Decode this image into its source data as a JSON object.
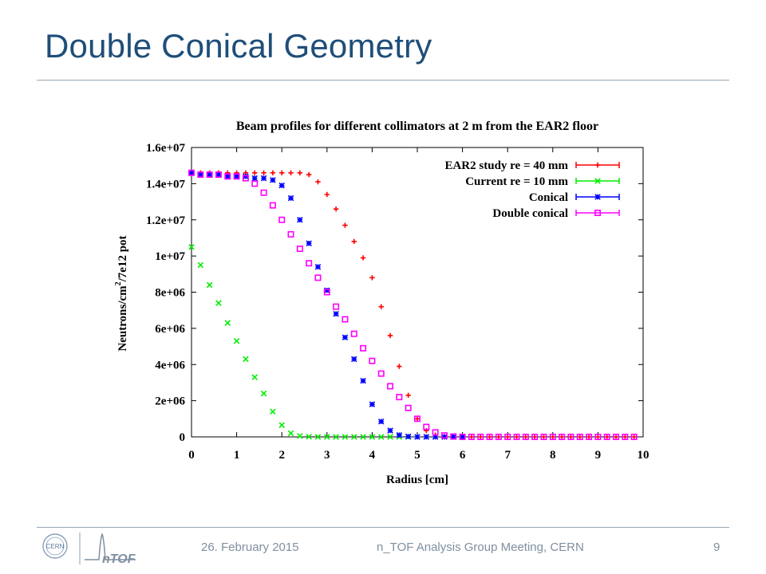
{
  "slide": {
    "title": "Double Conical Geometry",
    "footer_date": "26. February 2015",
    "footer_meeting": "n_TOF Analysis Group Meeting, CERN",
    "page_number": "9",
    "logo_left": "CERN",
    "logo_right": "nTOF",
    "colors": {
      "title": "#1f4e79",
      "rule": "#9aa7b4",
      "footer_text": "#7f8fa0"
    }
  },
  "chart_data": {
    "type": "scatter",
    "title": "Beam profiles for different collimators at 2 m from the EAR2 floor",
    "xlabel": "Radius [cm]",
    "ylabel": "Neutrons/cm2/7e12 pot",
    "ylabel_parts": {
      "pre": "Neutrons/cm",
      "sup": "2",
      "post": "/7e12 pot"
    },
    "xlim": [
      0,
      10
    ],
    "ylim": [
      0,
      16000000
    ],
    "xticks": [
      0,
      1,
      2,
      3,
      4,
      5,
      6,
      7,
      8,
      9,
      10
    ],
    "xtick_labels": [
      "0",
      "1",
      "2",
      "3",
      "4",
      "5",
      "6",
      "7",
      "8",
      "9",
      "10"
    ],
    "yticks": [
      0,
      2000000,
      4000000,
      6000000,
      8000000,
      10000000,
      12000000,
      14000000,
      16000000
    ],
    "ytick_labels": [
      "0",
      "2e+06",
      "4e+06",
      "6e+06",
      "8e+06",
      "1e+07",
      "1.2e+07",
      "1.4e+07",
      "1.6e+07"
    ],
    "grid": false,
    "legend_position": "top-right",
    "series": [
      {
        "name": "EAR2 study re = 40 mm",
        "color": "#ff0000",
        "marker": "plus",
        "points": [
          [
            0.0,
            14600000
          ],
          [
            0.2,
            14600000
          ],
          [
            0.4,
            14600000
          ],
          [
            0.6,
            14600000
          ],
          [
            0.8,
            14600000
          ],
          [
            1.0,
            14600000
          ],
          [
            1.2,
            14600000
          ],
          [
            1.4,
            14600000
          ],
          [
            1.6,
            14600000
          ],
          [
            1.8,
            14600000
          ],
          [
            2.0,
            14600000
          ],
          [
            2.2,
            14600000
          ],
          [
            2.4,
            14600000
          ],
          [
            2.6,
            14500000
          ],
          [
            2.8,
            14100000
          ],
          [
            3.0,
            13400000
          ],
          [
            3.2,
            12600000
          ],
          [
            3.4,
            11700000
          ],
          [
            3.6,
            10800000
          ],
          [
            3.8,
            9900000
          ],
          [
            4.0,
            8800000
          ],
          [
            4.2,
            7200000
          ],
          [
            4.4,
            5600000
          ],
          [
            4.6,
            3900000
          ],
          [
            4.8,
            2300000
          ],
          [
            5.0,
            1000000
          ],
          [
            5.2,
            350000
          ],
          [
            5.4,
            100000
          ],
          [
            5.6,
            20000
          ],
          [
            5.8,
            0
          ],
          [
            6.0,
            0
          ],
          [
            6.2,
            0
          ],
          [
            6.4,
            0
          ],
          [
            6.6,
            0
          ],
          [
            6.8,
            0
          ],
          [
            7.0,
            0
          ],
          [
            7.2,
            0
          ],
          [
            7.4,
            0
          ],
          [
            7.6,
            0
          ],
          [
            7.8,
            0
          ],
          [
            8.0,
            0
          ],
          [
            8.2,
            0
          ],
          [
            8.4,
            0
          ],
          [
            8.6,
            0
          ],
          [
            8.8,
            0
          ],
          [
            9.0,
            0
          ],
          [
            9.2,
            0
          ],
          [
            9.4,
            0
          ],
          [
            9.6,
            0
          ],
          [
            9.8,
            0
          ]
        ]
      },
      {
        "name": "Current re = 10 mm",
        "color": "#00ee00",
        "marker": "x",
        "points": [
          [
            0.0,
            10500000
          ],
          [
            0.2,
            9500000
          ],
          [
            0.4,
            8400000
          ],
          [
            0.6,
            7400000
          ],
          [
            0.8,
            6300000
          ],
          [
            1.0,
            5300000
          ],
          [
            1.2,
            4300000
          ],
          [
            1.4,
            3300000
          ],
          [
            1.6,
            2400000
          ],
          [
            1.8,
            1400000
          ],
          [
            2.0,
            650000
          ],
          [
            2.2,
            200000
          ],
          [
            2.4,
            50000
          ],
          [
            2.6,
            10000
          ],
          [
            2.8,
            0
          ],
          [
            3.0,
            0
          ],
          [
            3.2,
            0
          ],
          [
            3.4,
            0
          ],
          [
            3.6,
            0
          ],
          [
            3.8,
            0
          ],
          [
            4.0,
            0
          ],
          [
            4.2,
            0
          ],
          [
            4.4,
            0
          ],
          [
            4.6,
            0
          ],
          [
            4.8,
            0
          ]
        ]
      },
      {
        "name": "Conical",
        "color": "#0000ff",
        "marker": "star",
        "points": [
          [
            0.0,
            14600000
          ],
          [
            0.2,
            14500000
          ],
          [
            0.4,
            14500000
          ],
          [
            0.6,
            14500000
          ],
          [
            0.8,
            14400000
          ],
          [
            1.0,
            14400000
          ],
          [
            1.2,
            14400000
          ],
          [
            1.4,
            14300000
          ],
          [
            1.6,
            14300000
          ],
          [
            1.8,
            14200000
          ],
          [
            2.0,
            13900000
          ],
          [
            2.2,
            13200000
          ],
          [
            2.4,
            12000000
          ],
          [
            2.6,
            10700000
          ],
          [
            2.8,
            9400000
          ],
          [
            3.0,
            8100000
          ],
          [
            3.2,
            6800000
          ],
          [
            3.4,
            5500000
          ],
          [
            3.6,
            4300000
          ],
          [
            3.8,
            3100000
          ],
          [
            4.0,
            1800000
          ],
          [
            4.2,
            850000
          ],
          [
            4.4,
            350000
          ],
          [
            4.6,
            100000
          ],
          [
            4.8,
            20000
          ],
          [
            5.0,
            0
          ],
          [
            5.2,
            0
          ],
          [
            5.4,
            0
          ],
          [
            5.6,
            0
          ],
          [
            5.8,
            0
          ],
          [
            6.0,
            0
          ]
        ]
      },
      {
        "name": "Double conical",
        "color": "#ff00ff",
        "marker": "square",
        "points": [
          [
            0.0,
            14600000
          ],
          [
            0.2,
            14500000
          ],
          [
            0.4,
            14500000
          ],
          [
            0.6,
            14500000
          ],
          [
            0.8,
            14400000
          ],
          [
            1.0,
            14400000
          ],
          [
            1.2,
            14300000
          ],
          [
            1.4,
            14000000
          ],
          [
            1.6,
            13500000
          ],
          [
            1.8,
            12800000
          ],
          [
            2.0,
            12000000
          ],
          [
            2.2,
            11200000
          ],
          [
            2.4,
            10400000
          ],
          [
            2.6,
            9600000
          ],
          [
            2.8,
            8800000
          ],
          [
            3.0,
            8000000
          ],
          [
            3.2,
            7200000
          ],
          [
            3.4,
            6500000
          ],
          [
            3.6,
            5700000
          ],
          [
            3.8,
            4900000
          ],
          [
            4.0,
            4200000
          ],
          [
            4.2,
            3500000
          ],
          [
            4.4,
            2800000
          ],
          [
            4.6,
            2200000
          ],
          [
            4.8,
            1600000
          ],
          [
            5.0,
            1000000
          ],
          [
            5.2,
            550000
          ],
          [
            5.4,
            250000
          ],
          [
            5.6,
            80000
          ],
          [
            5.8,
            20000
          ],
          [
            6.0,
            0
          ],
          [
            6.2,
            0
          ],
          [
            6.4,
            0
          ],
          [
            6.6,
            0
          ],
          [
            6.8,
            0
          ],
          [
            7.0,
            0
          ],
          [
            7.2,
            0
          ],
          [
            7.4,
            0
          ],
          [
            7.6,
            0
          ],
          [
            7.8,
            0
          ],
          [
            8.0,
            0
          ],
          [
            8.2,
            0
          ],
          [
            8.4,
            0
          ],
          [
            8.6,
            0
          ],
          [
            8.8,
            0
          ],
          [
            9.0,
            0
          ],
          [
            9.2,
            0
          ],
          [
            9.4,
            0
          ],
          [
            9.6,
            0
          ],
          [
            9.8,
            0
          ]
        ]
      }
    ]
  }
}
